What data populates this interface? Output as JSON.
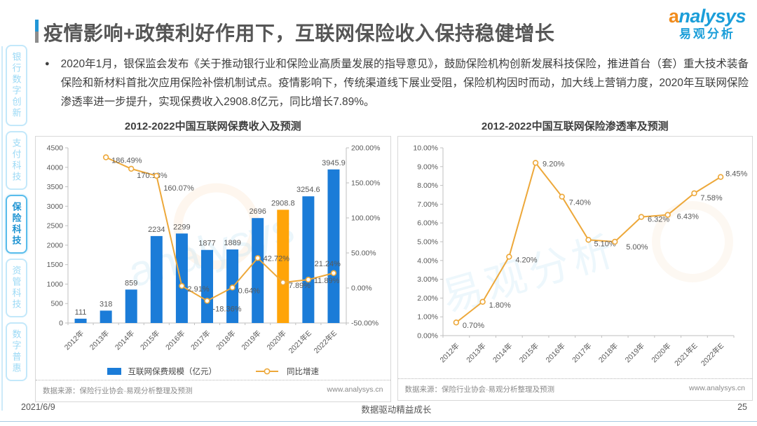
{
  "page": {
    "title": "疫情影响+政策利好作用下，互联网保险收入保持稳健增长",
    "bullet_glyph": "●",
    "paragraph": "2020年1月，银保监会发布《关于推动银行业和保险业高质量发展的指导意见》，鼓励保险机构创新发展科技保险，推进首台（套）重大技术装备保险和新材料首批次应用保险补偿机制试点。疫情影响下，传统渠道线下展业受阻，保险机构因时而动，加大线上营销力度，2020年互联网保险渗透率进一步提升，实现保费收入2908.8亿元，同比增长7.89%。",
    "footer": {
      "date": "2021/6/9",
      "slogan": "数据驱动精益成长",
      "page_number": "25"
    }
  },
  "logo": {
    "en": "analysys",
    "cn": "易观分析"
  },
  "sidebar": {
    "items": [
      {
        "label": "银行数字创新",
        "active": false
      },
      {
        "label": "支付科技",
        "active": false
      },
      {
        "label": "保险科技",
        "active": true
      },
      {
        "label": "资管科技",
        "active": false
      },
      {
        "label": "数字普惠",
        "active": false
      }
    ]
  },
  "colors": {
    "accent_blue": "#2196d6",
    "bar_blue": "#1b7cd8",
    "bar_highlight_orange": "#ffa408",
    "line_orange": "#eda83a",
    "sidebar_active_blue": "#1d93d2",
    "brand_blue": "#1b9ed9",
    "brand_orange": "#f08c1e",
    "axis_text_gray": "#595959"
  },
  "watermark": {
    "en": "analysys",
    "cn": "易观分析"
  },
  "chart_data": [
    {
      "type": "bar",
      "title": "2012-2022中国互联网保费收入及预测",
      "categories": [
        "2012年",
        "2013年",
        "2014年",
        "2015年",
        "2016年",
        "2017年",
        "2018年",
        "2019年",
        "2020年",
        "2021年E",
        "2022年E"
      ],
      "series": [
        {
          "name": "互联网保费规模（亿元）",
          "type": "bar",
          "values": [
            111,
            318,
            859,
            2234,
            2299,
            1877,
            1889,
            2696,
            2908.8,
            3254.6,
            3945.9
          ],
          "value_labels": [
            "111",
            "318",
            "859",
            "2234",
            "2299",
            "1877",
            "1889",
            "2696",
            "2908.8",
            "3254.6",
            "3945.9"
          ],
          "color": "#1b7cd8",
          "highlight_index": 8,
          "highlight_color": "#ffa408"
        },
        {
          "name": "同比增速",
          "type": "line",
          "axis": "secondary",
          "values": [
            null,
            186.49,
            170.13,
            160.07,
            2.91,
            -18.36,
            0.64,
            42.72,
            7.89,
            11.89,
            21.24
          ],
          "value_labels": [
            null,
            "186.49%",
            "170.13%",
            "160.07%",
            "2.91%",
            "-18.36%",
            "0.64%",
            "42.72%",
            "7.89%",
            "11.89%",
            "21.24%"
          ],
          "color": "#eda83a"
        }
      ],
      "primary_axis": {
        "min": 0,
        "max": 4500,
        "step": 500,
        "ticks": [
          "0",
          "500",
          "1000",
          "1500",
          "2000",
          "2500",
          "3000",
          "3500",
          "4000",
          "4500"
        ]
      },
      "secondary_axis": {
        "min": -50,
        "max": 200,
        "step": 50,
        "ticks": [
          "-50.00%",
          "0.00%",
          "50.00%",
          "100.00%",
          "150.00%",
          "200.00%"
        ]
      },
      "legend_position": "bottom",
      "grid": false,
      "source": "数据来源：保险行业协会·易观分析整理及预测",
      "website": "www.analysys.cn"
    },
    {
      "type": "line",
      "title": "2012-2022中国互联网保险渗透率及预测",
      "categories": [
        "2012年",
        "2013年",
        "2014年",
        "2015年",
        "2016年",
        "2017年",
        "2018年",
        "2019年",
        "2020年",
        "2021年E",
        "2022年E"
      ],
      "series": [
        {
          "type": "line",
          "values": [
            0.7,
            1.8,
            4.2,
            9.2,
            7.4,
            5.1,
            5.0,
            6.32,
            6.43,
            7.58,
            8.45
          ],
          "value_labels": [
            "0.70%",
            "1.80%",
            "4.20%",
            "9.20%",
            "7.40%",
            "5.10%",
            "5.00%",
            "6.32%",
            "6.43%",
            "7.58%",
            "8.45%"
          ],
          "color": "#eda83a"
        }
      ],
      "primary_axis": {
        "min": 0,
        "max": 10,
        "step": 1,
        "ticks": [
          "0.00%",
          "1.00%",
          "2.00%",
          "3.00%",
          "4.00%",
          "5.00%",
          "6.00%",
          "7.00%",
          "8.00%",
          "9.00%",
          "10.00%"
        ]
      },
      "grid": false,
      "source": "数据来源：保险行业协会·易观分析整理及预测",
      "website": "www.analysys.cn"
    }
  ]
}
